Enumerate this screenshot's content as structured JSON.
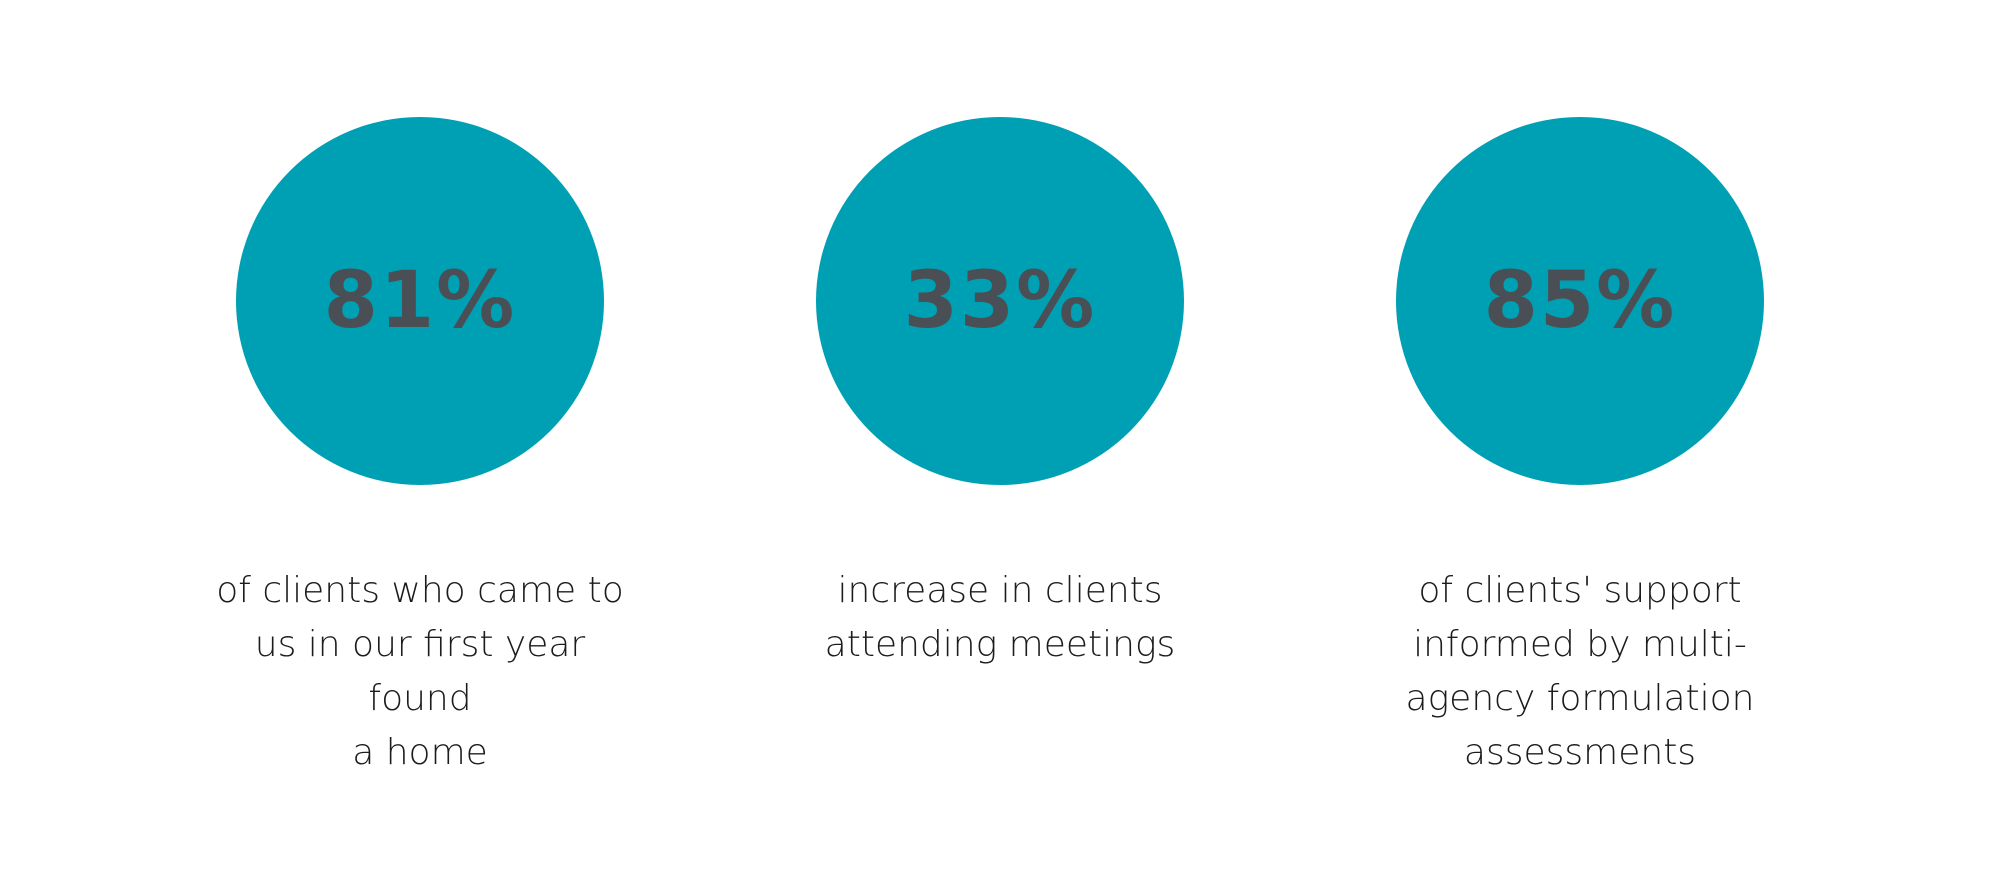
{
  "stats": [
    {
      "value": "81%",
      "caption_lines": [
        "of clients who came to",
        "us in our first year found",
        "a home"
      ]
    },
    {
      "value": "33%",
      "caption_lines": [
        "increase in clients",
        "attending meetings"
      ]
    },
    {
      "value": "85%",
      "caption_lines": [
        "of clients' support",
        "informed by multi-",
        "agency formulation",
        "assessments"
      ]
    }
  ],
  "colors": {
    "circle": "#00a0b4",
    "value_text": "#4a4f55",
    "caption_text": "#1c1c1c",
    "background": "#ffffff"
  }
}
